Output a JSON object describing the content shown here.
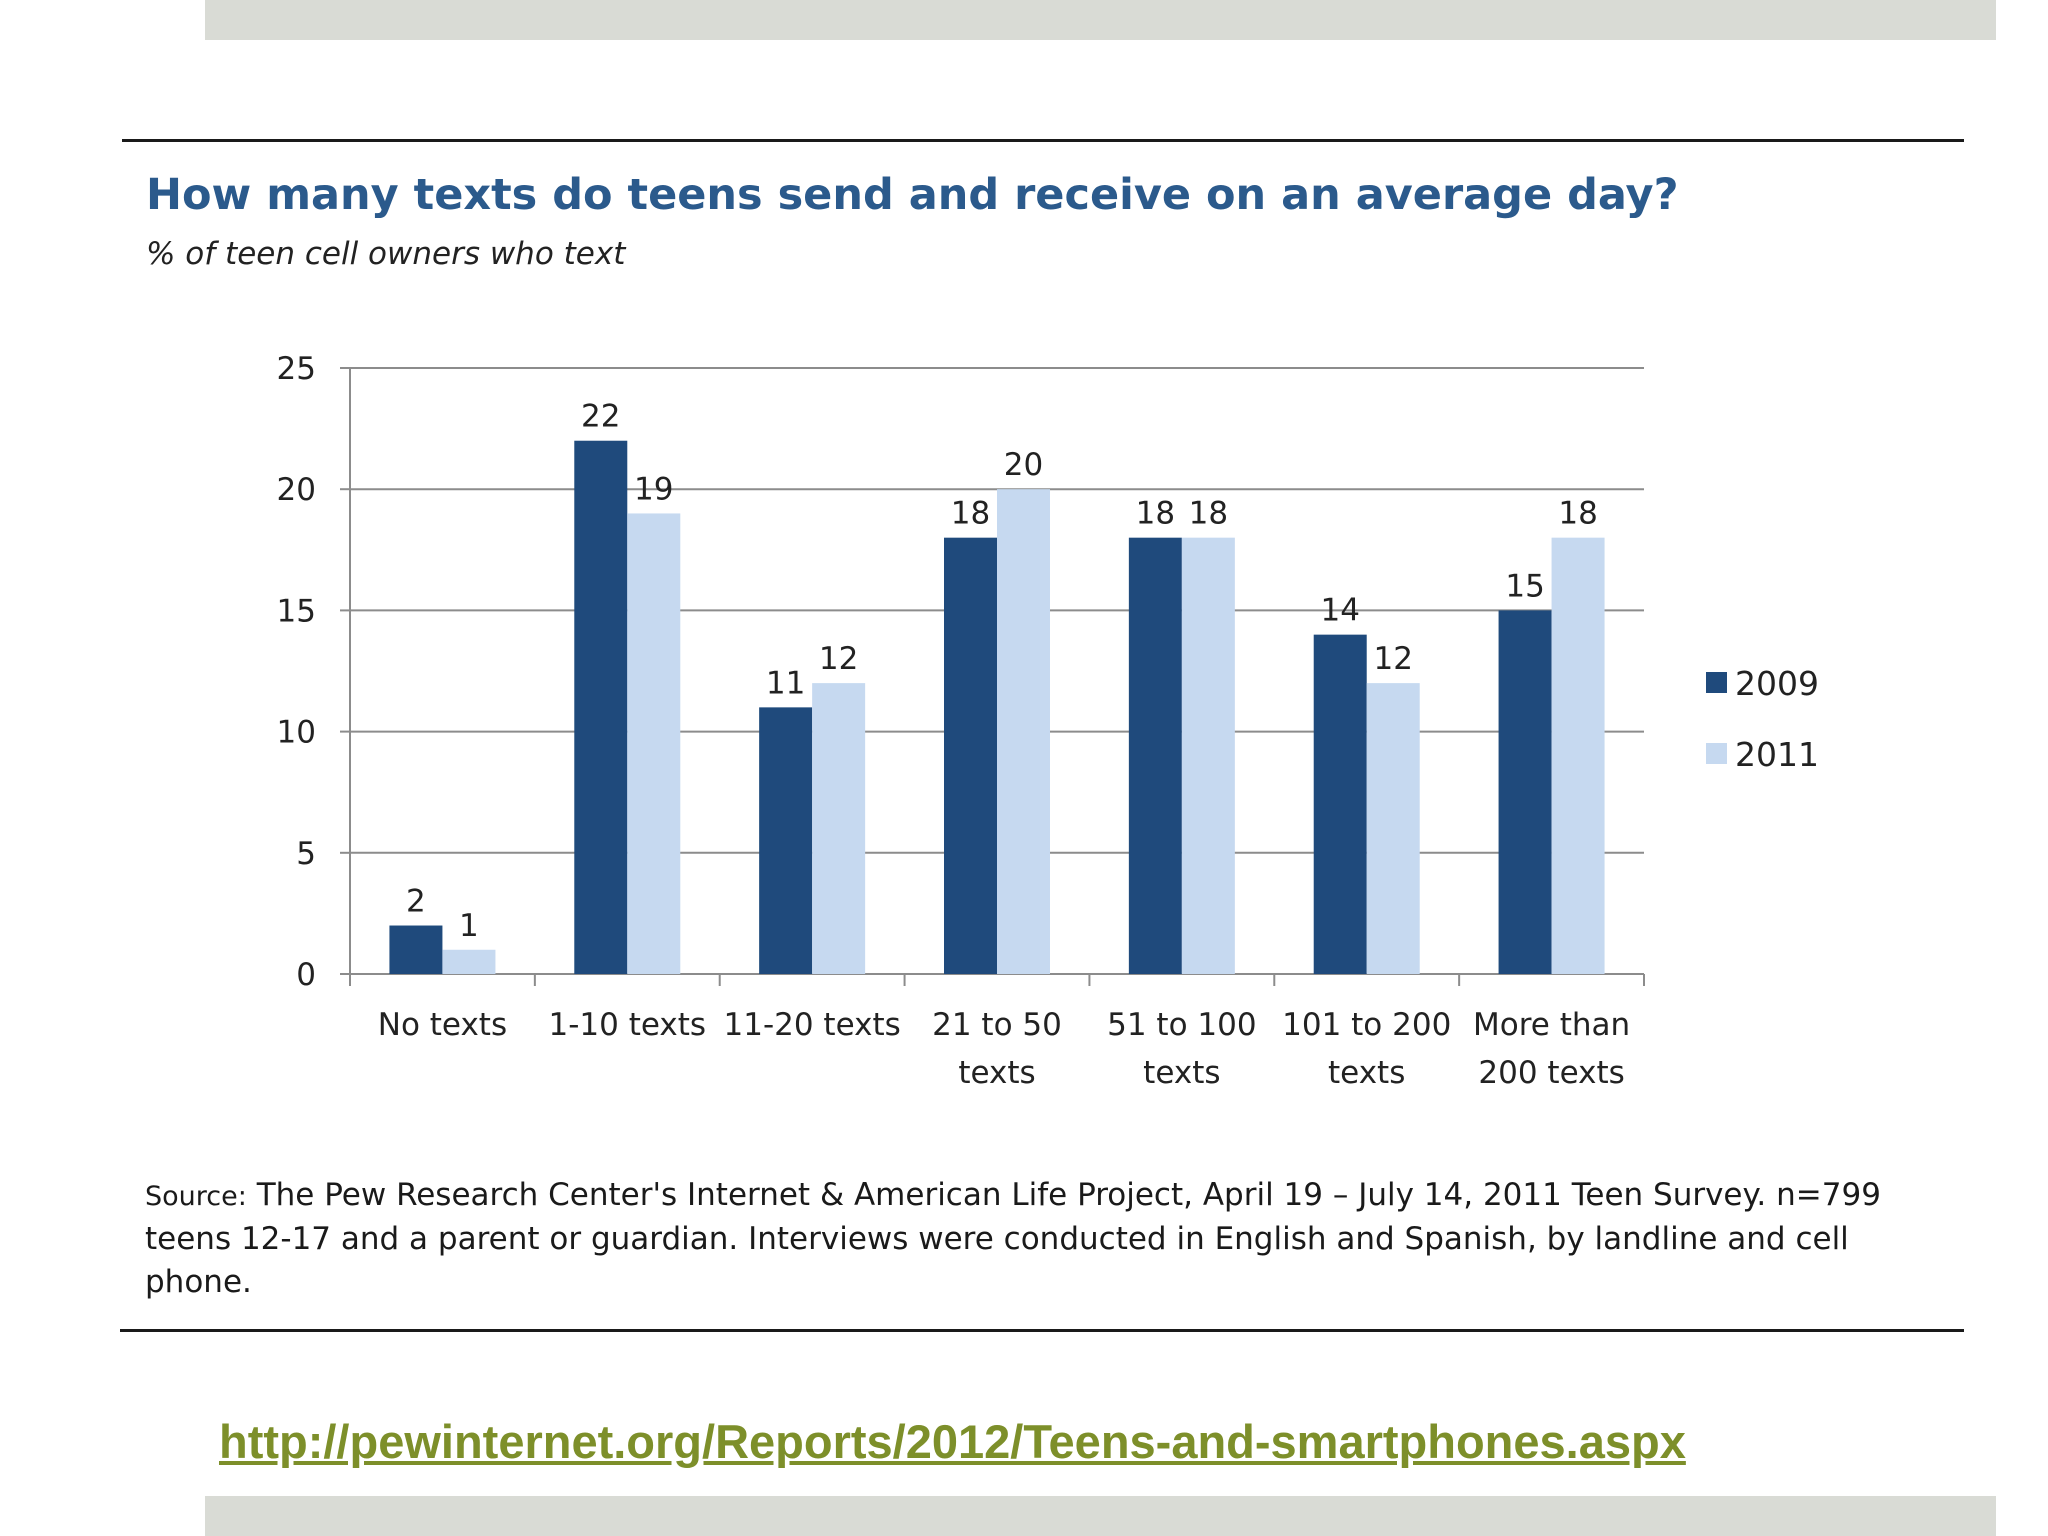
{
  "title": "How many texts do teens send and receive on an average day?",
  "subtitle": "% of teen cell owners who text",
  "source": {
    "label": "Source:",
    "text": "The Pew Research Center's Internet & American Life Project, April 19 – July 14, 2011 Teen Survey. n=799 teens 12-17 and a parent or guardian. Interviews were conducted in English and Spanish, by landline and cell phone."
  },
  "link": "http://pewinternet.org/Reports/2012/Teens-and-smartphones.aspx",
  "colors": {
    "series_2009": "#1f4a7c",
    "series_2011": "#c6d9f0",
    "title": "#2b5a8c",
    "link": "#7d8f2a"
  },
  "chart_data": {
    "type": "bar",
    "title": "How many texts do teens send and receive on an average day?",
    "subtitle": "% of teen cell owners who text",
    "categories": [
      [
        "No texts"
      ],
      [
        "1-10 texts"
      ],
      [
        "11-20 texts"
      ],
      [
        "21 to 50",
        "texts"
      ],
      [
        "51 to 100",
        "texts"
      ],
      [
        "101 to 200",
        "texts"
      ],
      [
        "More than",
        "200 texts"
      ]
    ],
    "series": [
      {
        "name": "2009",
        "values": [
          2,
          22,
          11,
          18,
          18,
          14,
          15
        ]
      },
      {
        "name": "2011",
        "values": [
          1,
          19,
          12,
          20,
          18,
          12,
          18
        ]
      }
    ],
    "ylim": [
      0,
      25
    ],
    "yticks": [
      0,
      5,
      10,
      15,
      20,
      25
    ],
    "grid": true,
    "legend": "right",
    "data_labels": true
  }
}
